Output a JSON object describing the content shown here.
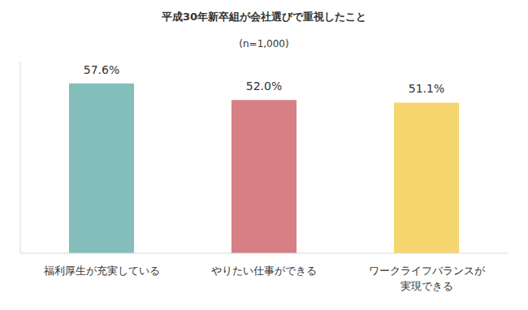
{
  "chart_data": {
    "type": "bar",
    "title": "平成30年新卒組が会社選びで重視したこと",
    "subtitle": "(n=1,000)",
    "categories": [
      "福利厚生が充実している",
      "やりたい仕事ができる",
      "ワークライフバランスが\n実現できる"
    ],
    "values": [
      57.6,
      52.0,
      51.1
    ],
    "value_labels": [
      "57.6%",
      "52.0%",
      "51.1%"
    ],
    "colors": [
      "#84bebb",
      "#d67f85",
      "#f5d56e"
    ],
    "ylim": [
      0,
      65
    ],
    "yticks": [],
    "grid": false,
    "data_labels": true,
    "tick_labels": "x"
  }
}
